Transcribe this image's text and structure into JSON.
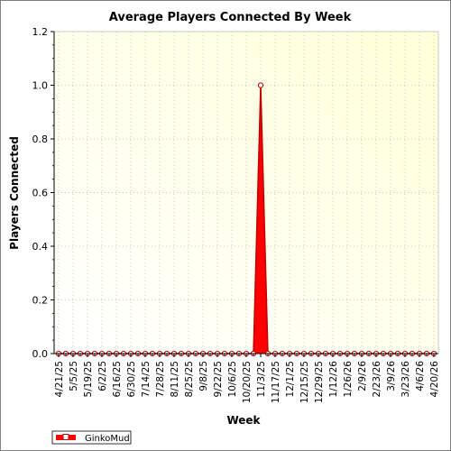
{
  "chart_data": {
    "type": "area",
    "title": "Average Players Connected By Week",
    "xlabel": "Week",
    "ylabel": "Players Connected",
    "ylim": [
      0,
      1.2
    ],
    "yticks": [
      "0.0",
      "0.2",
      "0.4",
      "0.6",
      "0.8",
      "1.0",
      "1.2"
    ],
    "grid": true,
    "legend": "bottom-left",
    "x": [
      "4/21/25",
      "4/28/25",
      "5/5/25",
      "5/12/25",
      "5/19/25",
      "5/26/25",
      "6/2/25",
      "6/9/25",
      "6/16/25",
      "6/23/25",
      "6/30/25",
      "7/7/25",
      "7/14/25",
      "7/21/25",
      "7/28/25",
      "8/4/25",
      "8/11/25",
      "8/18/25",
      "8/25/25",
      "9/1/25",
      "9/8/25",
      "9/15/25",
      "9/22/25",
      "9/29/25",
      "10/6/25",
      "10/13/25",
      "10/20/25",
      "10/27/25",
      "11/3/25",
      "11/10/25",
      "11/17/25",
      "11/24/25",
      "12/1/25",
      "12/8/25",
      "12/15/25",
      "12/22/25",
      "12/29/25",
      "1/5/26",
      "1/12/26",
      "1/19/26",
      "1/26/26",
      "2/2/26",
      "2/9/26",
      "2/16/26",
      "2/23/26",
      "3/2/26",
      "3/9/26",
      "3/16/26",
      "3/23/26",
      "3/30/26",
      "4/6/26",
      "4/13/26",
      "4/20/26"
    ],
    "xtick_labels": [
      "4/21/25",
      "5/5/25",
      "5/19/25",
      "6/2/25",
      "6/16/25",
      "6/30/25",
      "7/14/25",
      "7/28/25",
      "8/11/25",
      "8/25/25",
      "9/8/25",
      "9/22/25",
      "10/6/25",
      "10/20/25",
      "11/3/25",
      "11/17/25",
      "12/1/25",
      "12/15/25",
      "12/29/25",
      "1/12/26",
      "1/26/26",
      "2/9/26",
      "2/23/26",
      "3/9/26",
      "3/23/26",
      "4/6/26",
      "4/20/26"
    ],
    "series": [
      {
        "name": "GinkoMud",
        "color": "#ff0000",
        "values": [
          0,
          0,
          0,
          0,
          0,
          0,
          0,
          0,
          0,
          0,
          0,
          0,
          0,
          0,
          0,
          0,
          0,
          0,
          0,
          0,
          0,
          0,
          0,
          0,
          0,
          0,
          0,
          0,
          1.0,
          0,
          0,
          0,
          0,
          0,
          0,
          0,
          0,
          0,
          0,
          0,
          0,
          0,
          0,
          0,
          0,
          0,
          0,
          0,
          0,
          0,
          0,
          0,
          0
        ]
      }
    ]
  },
  "colors": {
    "plot_bg_top": "#ffffd8",
    "plot_bg_bottom": "#ffffff",
    "series_fill": "#ff0000",
    "series_edge": "#c00000"
  }
}
